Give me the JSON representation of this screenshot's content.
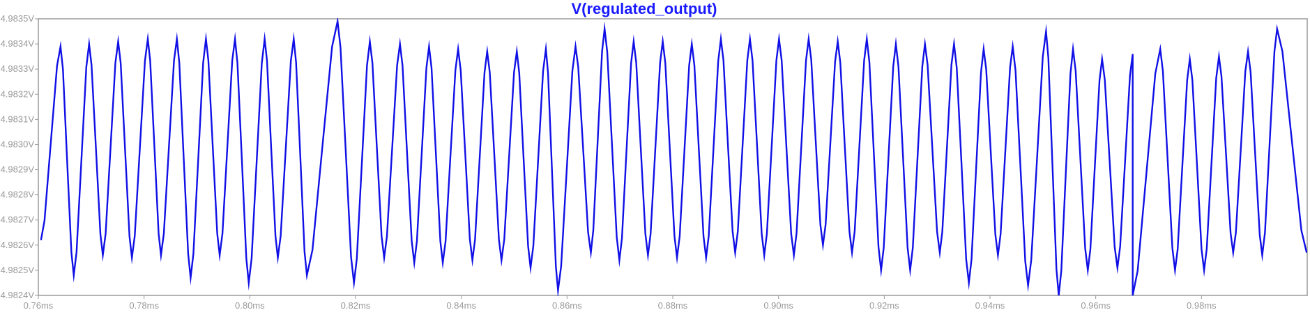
{
  "chart_data": {
    "type": "line",
    "title": "V(regulated_output)",
    "xlabel": "",
    "ylabel": "",
    "xlim": [
      0.76,
      1.0
    ],
    "ylim": [
      4.9824,
      4.9835
    ],
    "grid": false,
    "x_unit": "ms",
    "y_unit": "V",
    "x_ticks": [
      0.76,
      0.78,
      0.8,
      0.82,
      0.84,
      0.86,
      0.88,
      0.9,
      0.92,
      0.94,
      0.96,
      0.98
    ],
    "x_tick_labels": [
      "0.76ms",
      "0.78ms",
      "0.80ms",
      "0.82ms",
      "0.84ms",
      "0.86ms",
      "0.88ms",
      "0.90ms",
      "0.92ms",
      "0.94ms",
      "0.96ms",
      "0.98ms"
    ],
    "y_ticks": [
      4.9824,
      4.9825,
      4.9826,
      4.9827,
      4.9828,
      4.9829,
      4.983,
      4.9831,
      4.9832,
      4.9833,
      4.9834,
      4.9835
    ],
    "y_tick_labels": [
      "4.9824V",
      "4.9825V",
      "4.9826V",
      "4.9827V",
      "4.9828V",
      "4.9829V",
      "4.9830V",
      "4.9831V",
      "4.9832V",
      "4.9833V",
      "4.9834V",
      "4.9835V"
    ],
    "series": [
      {
        "name": "V(regulated_output)",
        "color": "#1010e6",
        "peaks": [
          {
            "x": 0.7642,
            "y": 4.98339
          },
          {
            "x": 0.7696,
            "y": 4.9834
          },
          {
            "x": 0.7751,
            "y": 4.98341
          },
          {
            "x": 0.7807,
            "y": 4.98342
          },
          {
            "x": 0.7862,
            "y": 4.98342
          },
          {
            "x": 0.7917,
            "y": 4.98342
          },
          {
            "x": 0.7972,
            "y": 4.98342
          },
          {
            "x": 0.8028,
            "y": 4.98342
          },
          {
            "x": 0.8083,
            "y": 4.98342
          },
          {
            "x": 0.8166,
            "y": 4.98349
          },
          {
            "x": 0.8227,
            "y": 4.98341
          },
          {
            "x": 0.8284,
            "y": 4.9834
          },
          {
            "x": 0.8339,
            "y": 4.98339
          },
          {
            "x": 0.8394,
            "y": 4.98338
          },
          {
            "x": 0.8449,
            "y": 4.98337
          },
          {
            "x": 0.8505,
            "y": 4.98337
          },
          {
            "x": 0.856,
            "y": 4.98338
          },
          {
            "x": 0.8616,
            "y": 4.98339
          },
          {
            "x": 0.8671,
            "y": 4.98346
          },
          {
            "x": 0.8726,
            "y": 4.98341
          },
          {
            "x": 0.8781,
            "y": 4.98341
          },
          {
            "x": 0.8836,
            "y": 4.9834
          },
          {
            "x": 0.8891,
            "y": 4.98342
          },
          {
            "x": 0.8946,
            "y": 4.98342
          },
          {
            "x": 0.9001,
            "y": 4.98342
          },
          {
            "x": 0.9057,
            "y": 4.98342
          },
          {
            "x": 0.9112,
            "y": 4.98341
          },
          {
            "x": 0.9167,
            "y": 4.98342
          },
          {
            "x": 0.9222,
            "y": 4.9834
          },
          {
            "x": 0.9277,
            "y": 4.9834
          },
          {
            "x": 0.9332,
            "y": 4.9834
          },
          {
            "x": 0.9388,
            "y": 4.98338
          },
          {
            "x": 0.9443,
            "y": 4.98339
          },
          {
            "x": 0.9506,
            "y": 4.98345
          },
          {
            "x": 0.9557,
            "y": 4.98338
          },
          {
            "x": 0.9612,
            "y": 4.98334
          },
          {
            "x": 0.967,
            "y": 4.98336
          },
          {
            "x": 0.9722,
            "y": 4.98338
          },
          {
            "x": 0.9778,
            "y": 4.98334
          },
          {
            "x": 0.9833,
            "y": 4.98335
          },
          {
            "x": 0.9888,
            "y": 4.98337
          },
          {
            "x": 0.9943,
            "y": 4.98346
          }
        ],
        "troughs": [
          {
            "x": 0.7605,
            "y": 4.98262
          },
          {
            "x": 0.7667,
            "y": 4.98248
          },
          {
            "x": 0.7722,
            "y": 4.98256
          },
          {
            "x": 0.7777,
            "y": 4.98255
          },
          {
            "x": 0.7832,
            "y": 4.98256
          },
          {
            "x": 0.7888,
            "y": 4.98247
          },
          {
            "x": 0.7943,
            "y": 4.98256
          },
          {
            "x": 0.7998,
            "y": 4.98245
          },
          {
            "x": 0.8053,
            "y": 4.98255
          },
          {
            "x": 0.8108,
            "y": 4.98248
          },
          {
            "x": 0.8197,
            "y": 4.98245
          },
          {
            "x": 0.8254,
            "y": 4.98255
          },
          {
            "x": 0.8311,
            "y": 4.98253
          },
          {
            "x": 0.8365,
            "y": 4.98253
          },
          {
            "x": 0.8421,
            "y": 4.98254
          },
          {
            "x": 0.8476,
            "y": 4.98254
          },
          {
            "x": 0.8531,
            "y": 4.98251
          },
          {
            "x": 0.8583,
            "y": 4.98242
          },
          {
            "x": 0.8645,
            "y": 4.98257
          },
          {
            "x": 0.8699,
            "y": 4.98254
          },
          {
            "x": 0.8753,
            "y": 4.98256
          },
          {
            "x": 0.8808,
            "y": 4.98255
          },
          {
            "x": 0.8863,
            "y": 4.98255
          },
          {
            "x": 0.8918,
            "y": 4.98257
          },
          {
            "x": 0.8973,
            "y": 4.98256
          },
          {
            "x": 0.9029,
            "y": 4.98256
          },
          {
            "x": 0.9084,
            "y": 4.9826
          },
          {
            "x": 0.9139,
            "y": 4.98257
          },
          {
            "x": 0.9194,
            "y": 4.9825
          },
          {
            "x": 0.9249,
            "y": 4.9825
          },
          {
            "x": 0.9305,
            "y": 4.98257
          },
          {
            "x": 0.936,
            "y": 4.98245
          },
          {
            "x": 0.9415,
            "y": 4.98256
          },
          {
            "x": 0.9472,
            "y": 4.98244
          },
          {
            "x": 0.953,
            "y": 4.9824
          },
          {
            "x": 0.9585,
            "y": 4.9825
          },
          {
            "x": 0.9641,
            "y": 4.98251
          },
          {
            "x": 0.967,
            "y": 4.9824
          },
          {
            "x": 0.975,
            "y": 4.9825
          },
          {
            "x": 0.9805,
            "y": 4.9825
          },
          {
            "x": 0.986,
            "y": 4.98257
          },
          {
            "x": 0.9915,
            "y": 4.98256
          },
          {
            "x": 0.9999,
            "y": 4.98257
          }
        ]
      }
    ]
  }
}
